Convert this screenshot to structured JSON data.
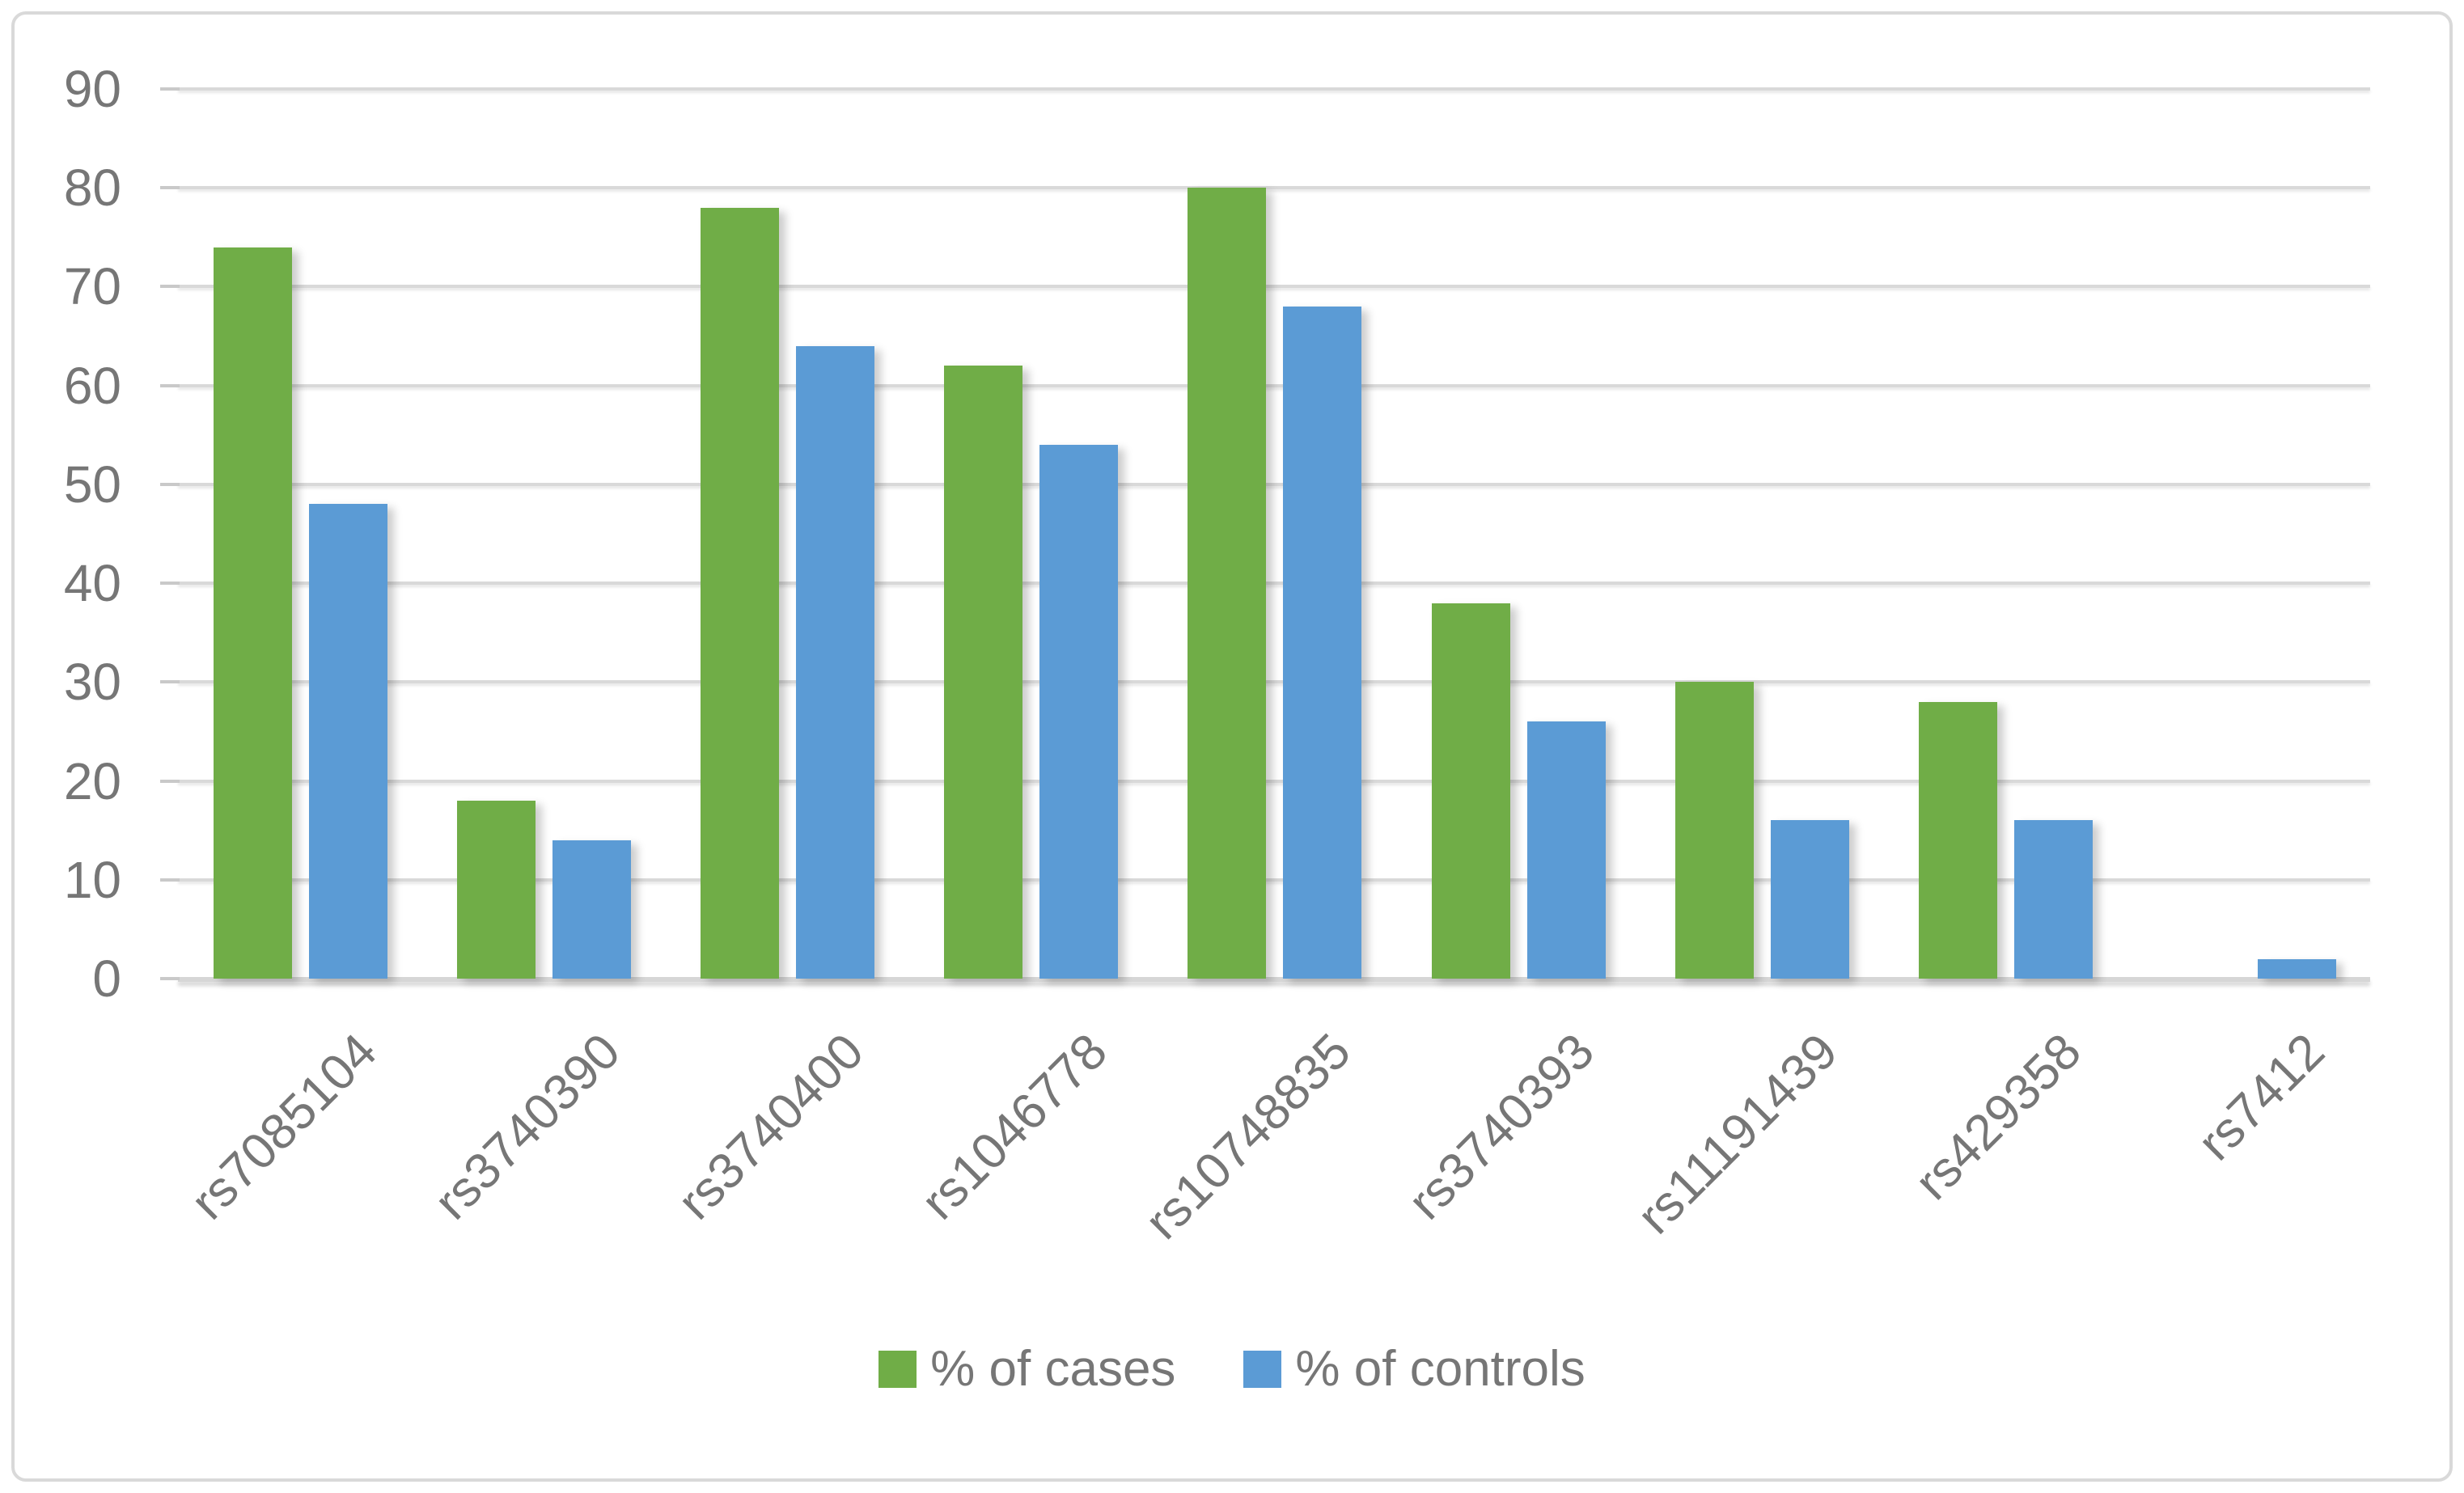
{
  "chart_data": {
    "type": "bar",
    "title": "",
    "xlabel": "",
    "ylabel": "",
    "categories": [
      "rs7085104",
      "rs3740390",
      "rs3740400",
      "rs1046778",
      "rs10748835",
      "rs3740393",
      "rs11191439",
      "rs429358",
      "rs7412"
    ],
    "series": [
      {
        "name": "% of cases",
        "color": "#70AD47",
        "values": [
          74,
          18,
          78,
          62,
          80,
          38,
          30,
          28,
          0
        ]
      },
      {
        "name": "% of controls",
        "color": "#5B9BD5",
        "values": [
          48,
          14,
          64,
          54,
          68,
          26,
          16,
          16,
          2
        ]
      }
    ],
    "ylim": [
      0,
      90
    ],
    "yticks": [
      0,
      10,
      20,
      30,
      40,
      50,
      60,
      70,
      80,
      90
    ],
    "grid": true,
    "legend_position": "bottom"
  },
  "colors": {
    "gridline": "#D9D9D9",
    "axis_line": "#D6D6D6",
    "tick": "#C9C9C9",
    "text": "#767676",
    "frame_border": "#D9D9D9",
    "background": "#FFFFFF"
  }
}
